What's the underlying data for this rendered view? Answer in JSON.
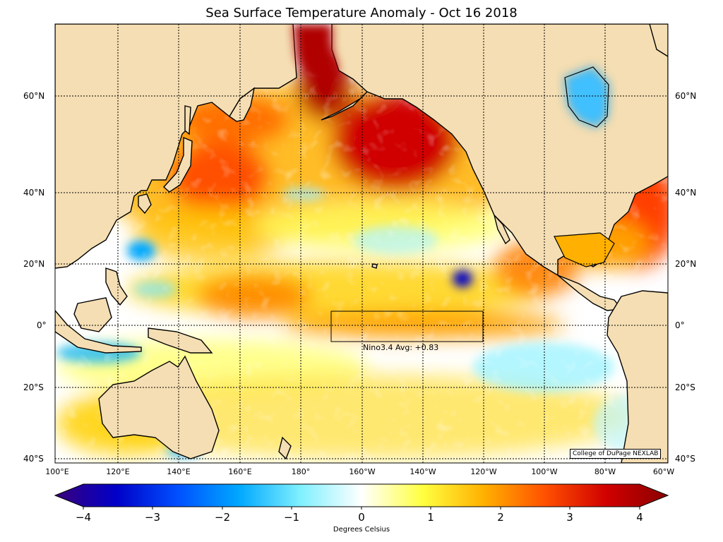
{
  "title": "Sea Surface Temperature Anomaly - Oct 16 2018",
  "lon_labels": [
    "100°E",
    "120°E",
    "140°E",
    "160°E",
    "180°",
    "160°W",
    "140°W",
    "120°W",
    "100°W",
    "80°W",
    "60°W"
  ],
  "lat_labels": [
    "60°N",
    "40°N",
    "20°N",
    "0°",
    "20°S",
    "40°S"
  ],
  "nino_box": {
    "label": "Nino3.4 Avg: +0.83",
    "lon_range": [
      "170°W",
      "120°W"
    ],
    "lat_range": [
      "5°S",
      "5°N"
    ]
  },
  "credit": "College of DuPage NEXLAB",
  "colorbar": {
    "min": -4,
    "max": 4,
    "ticks": [
      "−4",
      "−3",
      "−2",
      "−1",
      "0",
      "1",
      "2",
      "3",
      "4"
    ],
    "label": "Degrees Celsius",
    "colors": [
      "#3a007a",
      "#0000c8",
      "#0050ff",
      "#00a8ff",
      "#7ff0ff",
      "#ffffff",
      "#ffff40",
      "#ffb000",
      "#ff5000",
      "#d00000",
      "#8a0000"
    ]
  },
  "colors": {
    "land": "#f5deb3",
    "grid": "#000000"
  }
}
